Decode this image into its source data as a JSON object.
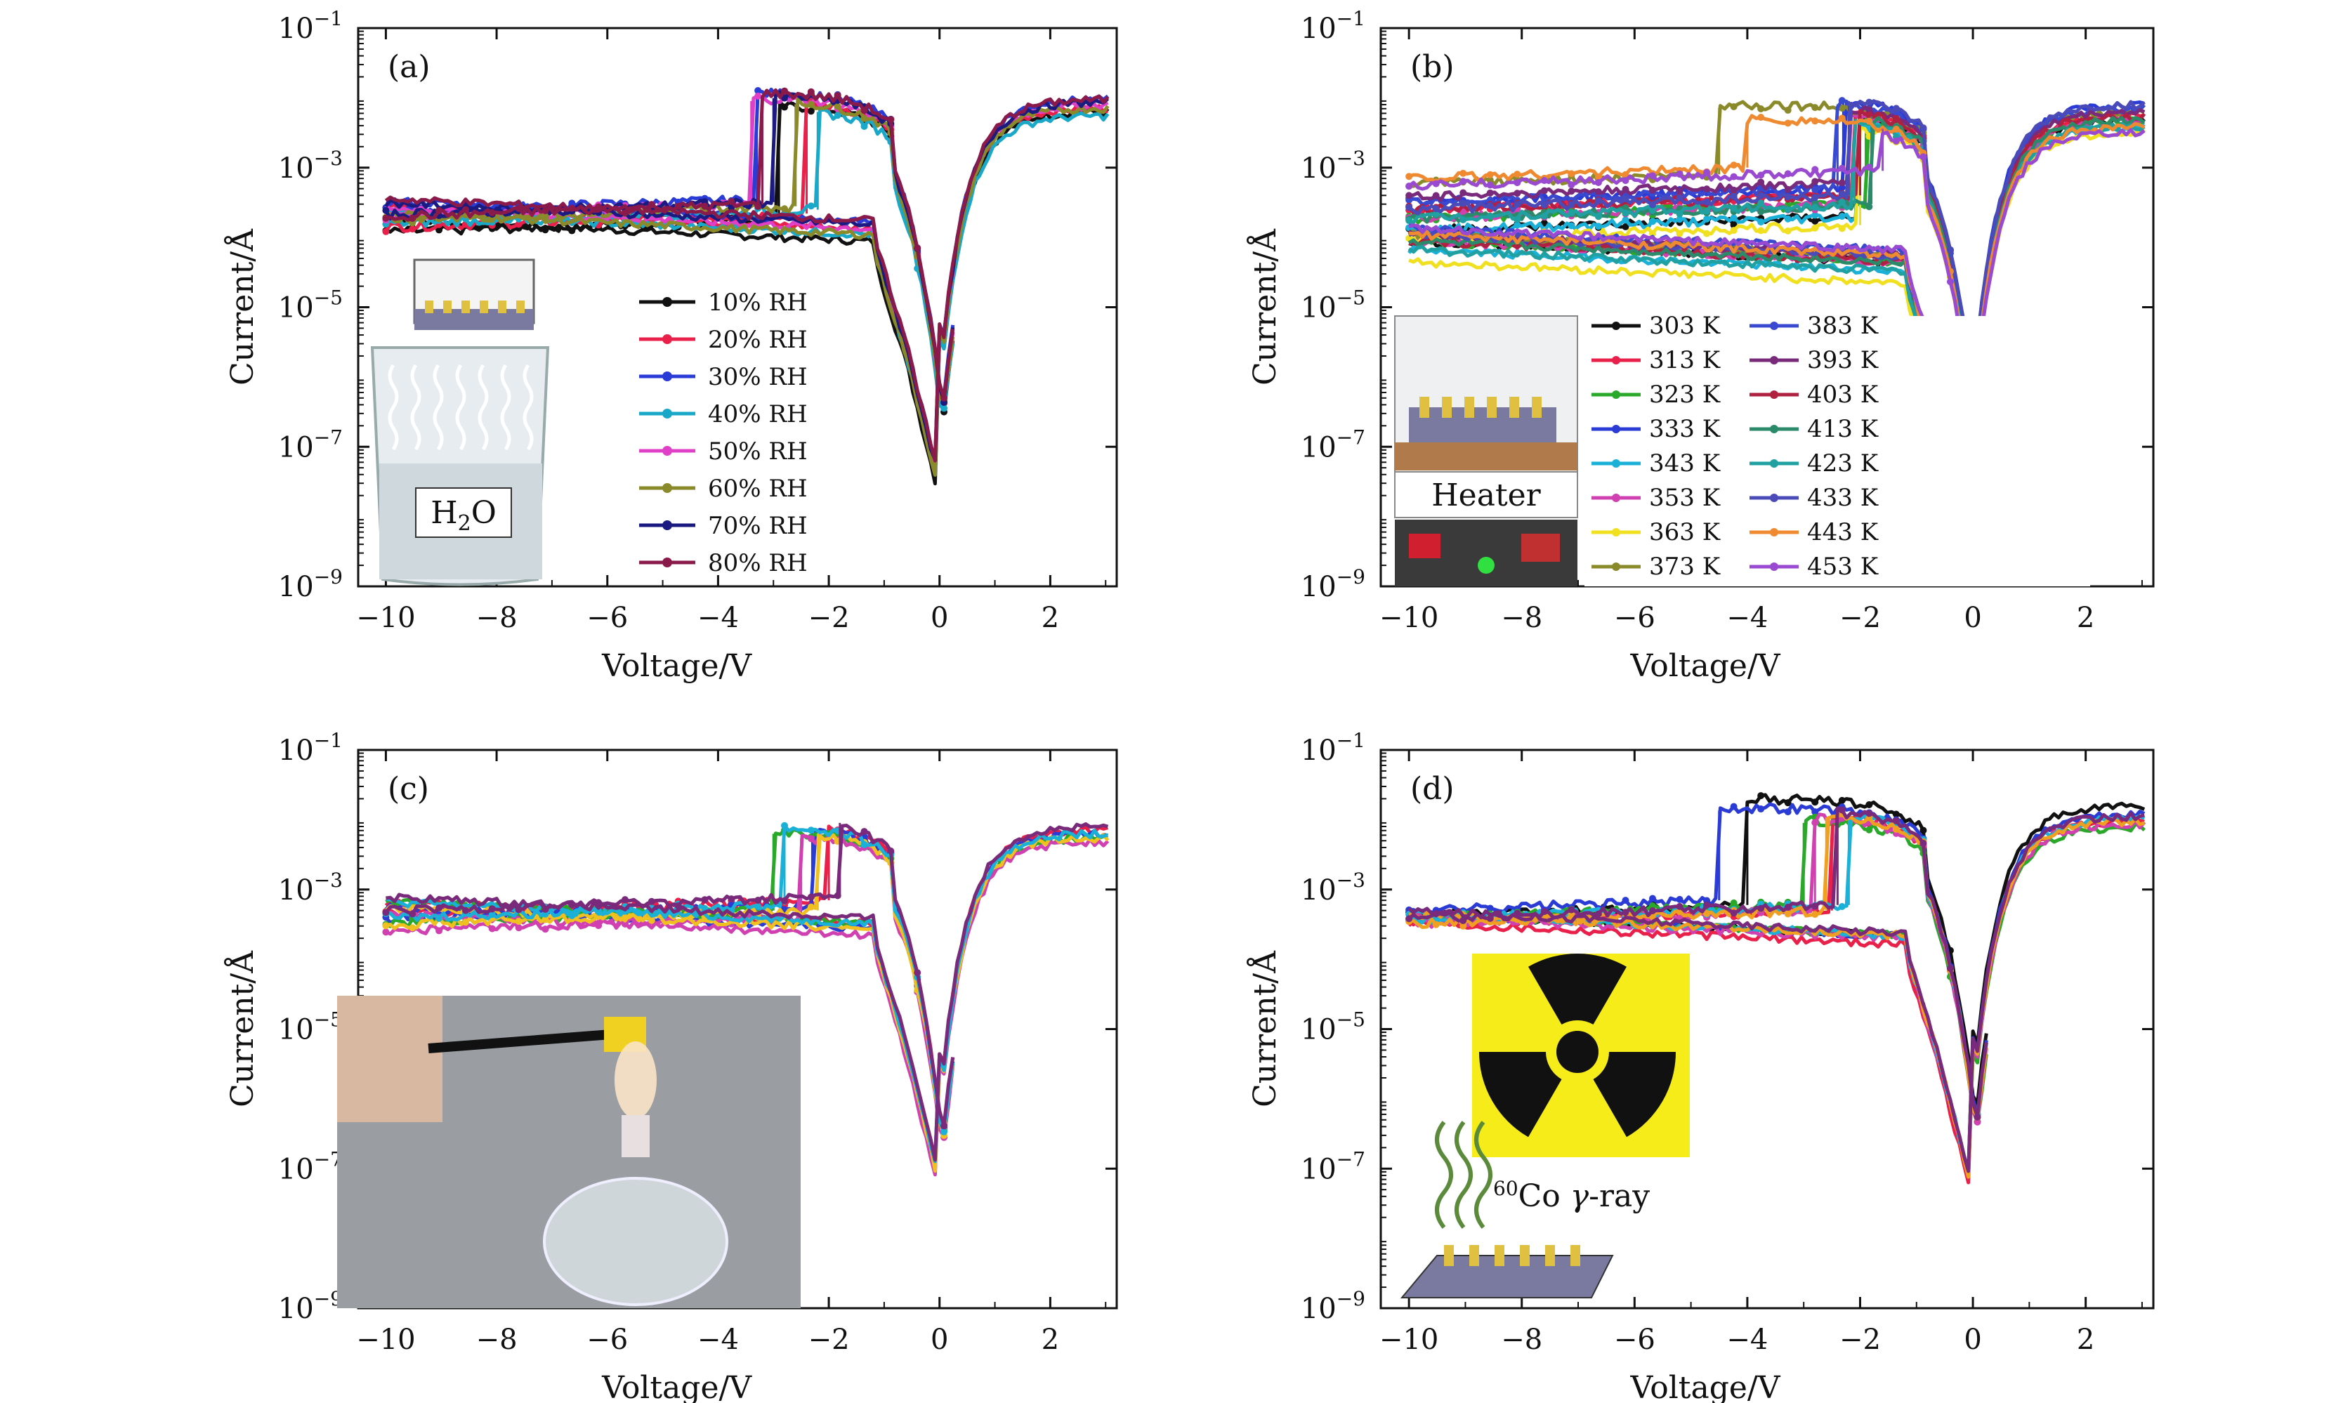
{
  "figure": {
    "panels": [
      {
        "id": "a",
        "panel_label": "(a)",
        "chart_data": {
          "type": "line",
          "xlabel": "Voltage/V",
          "ylabel": "Current/Å",
          "xlim": [
            -10.5,
            3.2
          ],
          "yscale": "log",
          "ylim": [
            1e-09,
            0.1
          ],
          "xticks": [
            -10,
            -8,
            -6,
            -4,
            -2,
            0,
            2
          ],
          "yticks": [
            {
              "base": "10",
              "exp": "−1",
              "v": 0.1
            },
            {
              "base": "10",
              "exp": "−3",
              "v": 0.001
            },
            {
              "base": "10",
              "exp": "−5",
              "v": 1e-05
            },
            {
              "base": "10",
              "exp": "−7",
              "v": 1e-07
            },
            {
              "base": "10",
              "exp": "−9",
              "v": 1e-09
            }
          ],
          "grid": false,
          "legend_position": "bottom-center",
          "series": [
            {
              "name": "10% RH",
              "color": "#111111",
              "low": 8e-05,
              "high": 0.00018,
              "jump_v": -2.9,
              "peak": 0.008
            },
            {
              "name": "20% RH",
              "color": "#e8204a",
              "low": 0.00012,
              "high": 0.00022,
              "jump_v": -2.4,
              "peak": 0.009
            },
            {
              "name": "30% RH",
              "color": "#2a3bd6",
              "low": 0.00015,
              "high": 0.00035,
              "jump_v": -3.3,
              "peak": 0.012
            },
            {
              "name": "40% RH",
              "color": "#1aa8c8",
              "low": 0.0001,
              "high": 0.00025,
              "jump_v": -2.2,
              "peak": 0.007
            },
            {
              "name": "50% RH",
              "color": "#e040c8",
              "low": 0.00012,
              "high": 0.0003,
              "jump_v": -3.4,
              "peak": 0.01
            },
            {
              "name": "60% RH",
              "color": "#8a8a2a",
              "low": 0.0001,
              "high": 0.00028,
              "jump_v": -2.6,
              "peak": 0.009
            },
            {
              "name": "70% RH",
              "color": "#1a1a80",
              "low": 0.00014,
              "high": 0.00032,
              "jump_v": -3.0,
              "peak": 0.011
            },
            {
              "name": "80% RH",
              "color": "#8a1a4a",
              "low": 0.00016,
              "high": 0.0003,
              "jump_v": -3.2,
              "peak": 0.012
            }
          ]
        },
        "inset": {
          "text_main": "H",
          "text_sub": "2",
          "text_tail": "O",
          "icon": "beaker-water-inset"
        }
      },
      {
        "id": "b",
        "panel_label": "(b)",
        "chart_data": {
          "type": "line",
          "xlabel": "Voltage/V",
          "ylabel": "Current/Å",
          "xlim": [
            -10.5,
            3.2
          ],
          "yscale": "log",
          "ylim": [
            1e-09,
            0.1
          ],
          "xticks": [
            -10,
            -8,
            -6,
            -4,
            -2,
            0,
            2
          ],
          "yticks": [
            {
              "base": "10",
              "exp": "−1",
              "v": 0.1
            },
            {
              "base": "10",
              "exp": "−3",
              "v": 0.001
            },
            {
              "base": "10",
              "exp": "−5",
              "v": 1e-05
            },
            {
              "base": "10",
              "exp": "−7",
              "v": 1e-07
            },
            {
              "base": "10",
              "exp": "−9",
              "v": 1e-09
            }
          ],
          "grid": false,
          "legend_position": "bottom-right",
          "series": [
            {
              "name": "303 K",
              "color": "#111111",
              "low": 4e-05,
              "high": 0.0002,
              "jump_v": -2.0,
              "peak": 0.006
            },
            {
              "name": "313 K",
              "color": "#e8204a",
              "low": 5e-05,
              "high": 0.0004,
              "jump_v": -2.1,
              "peak": 0.007
            },
            {
              "name": "323 K",
              "color": "#2aa82a",
              "low": 4e-05,
              "high": 0.0003,
              "jump_v": -1.9,
              "peak": 0.006
            },
            {
              "name": "333 K",
              "color": "#2a3bd6",
              "low": 5e-05,
              "high": 0.0005,
              "jump_v": -2.3,
              "peak": 0.01
            },
            {
              "name": "343 K",
              "color": "#1ab0d8",
              "low": 3e-05,
              "high": 0.0002,
              "jump_v": -2.0,
              "peak": 0.005
            },
            {
              "name": "353 K",
              "color": "#d040b0",
              "low": 4e-05,
              "high": 0.0003,
              "jump_v": -2.2,
              "peak": 0.006
            },
            {
              "name": "363 K",
              "color": "#f0e020",
              "low": 2e-05,
              "high": 0.00015,
              "jump_v": -2.0,
              "peak": 0.004
            },
            {
              "name": "373 K",
              "color": "#8a8a2a",
              "low": 5e-05,
              "high": 0.0008,
              "jump_v": -4.5,
              "peak": 0.008
            },
            {
              "name": "383 K",
              "color": "#3a4ad0",
              "low": 6e-05,
              "high": 0.0005,
              "jump_v": -2.4,
              "peak": 0.009
            },
            {
              "name": "393 K",
              "color": "#7a2a7a",
              "low": 5e-05,
              "high": 0.0006,
              "jump_v": -2.2,
              "peak": 0.008
            },
            {
              "name": "403 K",
              "color": "#b02040",
              "low": 4e-05,
              "high": 0.0004,
              "jump_v": -2.0,
              "peak": 0.007
            },
            {
              "name": "413 K",
              "color": "#2a8a6a",
              "low": 4e-05,
              "high": 0.0003,
              "jump_v": -1.8,
              "peak": 0.006
            },
            {
              "name": "423 K",
              "color": "#20a0a0",
              "low": 3e-05,
              "high": 0.0003,
              "jump_v": -2.1,
              "peak": 0.005
            },
            {
              "name": "433 K",
              "color": "#4a4ab8",
              "low": 5e-05,
              "high": 0.0004,
              "jump_v": -2.2,
              "peak": 0.01
            },
            {
              "name": "443 K",
              "color": "#f08a30",
              "low": 5e-05,
              "high": 0.001,
              "jump_v": -4.0,
              "peak": 0.005
            },
            {
              "name": "453 K",
              "color": "#9a4ad0",
              "low": 6e-05,
              "high": 0.0009,
              "jump_v": -1.6,
              "peak": 0.004
            }
          ]
        },
        "inset": {
          "text_main": "Heater",
          "icon": "heater-device-inset"
        }
      },
      {
        "id": "c",
        "panel_label": "(c)",
        "chart_data": {
          "type": "line",
          "xlabel": "Voltage/V",
          "ylabel": "Current/Å",
          "xlim": [
            -10.5,
            3.2
          ],
          "yscale": "log",
          "ylim": [
            1e-09,
            0.1
          ],
          "xticks": [
            -10,
            -8,
            -6,
            -4,
            -2,
            0,
            2
          ],
          "yticks": [
            {
              "base": "10",
              "exp": "−1",
              "v": 0.1
            },
            {
              "base": "10",
              "exp": "−3",
              "v": 0.001
            },
            {
              "base": "10",
              "exp": "−5",
              "v": 1e-05
            },
            {
              "base": "10",
              "exp": "−7",
              "v": 1e-07
            },
            {
              "base": "10",
              "exp": "−9",
              "v": 1e-09
            }
          ],
          "grid": false,
          "series": [
            {
              "color": "#e8204a",
              "low": 0.0003,
              "high": 0.0007,
              "jump_v": -2.0,
              "peak": 0.009
            },
            {
              "color": "#2a3bd6",
              "low": 0.00025,
              "high": 0.0006,
              "jump_v": -2.3,
              "peak": 0.008
            },
            {
              "color": "#2aa82a",
              "low": 0.0003,
              "high": 0.0005,
              "jump_v": -3.0,
              "peak": 0.007
            },
            {
              "color": "#d040b0",
              "low": 0.0002,
              "high": 0.0004,
              "jump_v": -2.5,
              "peak": 0.006
            },
            {
              "color": "#f0c020",
              "low": 0.00025,
              "high": 0.0005,
              "jump_v": -2.2,
              "peak": 0.007
            },
            {
              "color": "#1ab0d8",
              "low": 0.0003,
              "high": 0.0006,
              "jump_v": -2.8,
              "peak": 0.008
            },
            {
              "color": "#7a2a7a",
              "low": 0.00035,
              "high": 0.0008,
              "jump_v": -1.8,
              "peak": 0.01
            }
          ]
        },
        "inset": {
          "icon": "alcohol-lamp-photo-inset"
        }
      },
      {
        "id": "d",
        "panel_label": "(d)",
        "chart_data": {
          "type": "line",
          "xlabel": "Voltage/V",
          "ylabel": "Current/Å",
          "xlim": [
            -10.5,
            3.2
          ],
          "yscale": "log",
          "ylim": [
            1e-09,
            0.1
          ],
          "xticks": [
            -10,
            -8,
            -6,
            -4,
            -2,
            0,
            2
          ],
          "yticks": [
            {
              "base": "10",
              "exp": "−1",
              "v": 0.1
            },
            {
              "base": "10",
              "exp": "−3",
              "v": 0.001
            },
            {
              "base": "10",
              "exp": "−5",
              "v": 1e-05
            },
            {
              "base": "10",
              "exp": "−7",
              "v": 1e-07
            },
            {
              "base": "10",
              "exp": "−9",
              "v": 1e-09
            }
          ],
          "grid": false,
          "series": [
            {
              "color": "#111111",
              "low": 0.0002,
              "high": 0.0006,
              "jump_v": -4.0,
              "peak": 0.02
            },
            {
              "color": "#2a3bd6",
              "low": 0.0002,
              "high": 0.0007,
              "jump_v": -4.5,
              "peak": 0.015
            },
            {
              "color": "#e8204a",
              "low": 0.00015,
              "high": 0.0005,
              "jump_v": -2.5,
              "peak": 0.012
            },
            {
              "color": "#2aa82a",
              "low": 0.0002,
              "high": 0.0006,
              "jump_v": -3.0,
              "peak": 0.01
            },
            {
              "color": "#d040b0",
              "low": 0.00018,
              "high": 0.0005,
              "jump_v": -2.8,
              "peak": 0.011
            },
            {
              "color": "#1ab0d8",
              "low": 0.0002,
              "high": 0.0006,
              "jump_v": -2.2,
              "peak": 0.013
            },
            {
              "color": "#f0a020",
              "low": 0.0002,
              "high": 0.0005,
              "jump_v": -2.6,
              "peak": 0.012
            },
            {
              "color": "#7a2a7a",
              "low": 0.00022,
              "high": 0.0006,
              "jump_v": -2.4,
              "peak": 0.014
            }
          ]
        },
        "inset": {
          "sup": "60",
          "text_main": "Co ",
          "text_gamma": "γ",
          "text_tail": "-ray",
          "icon": "radiation-symbol-inset"
        }
      }
    ]
  }
}
